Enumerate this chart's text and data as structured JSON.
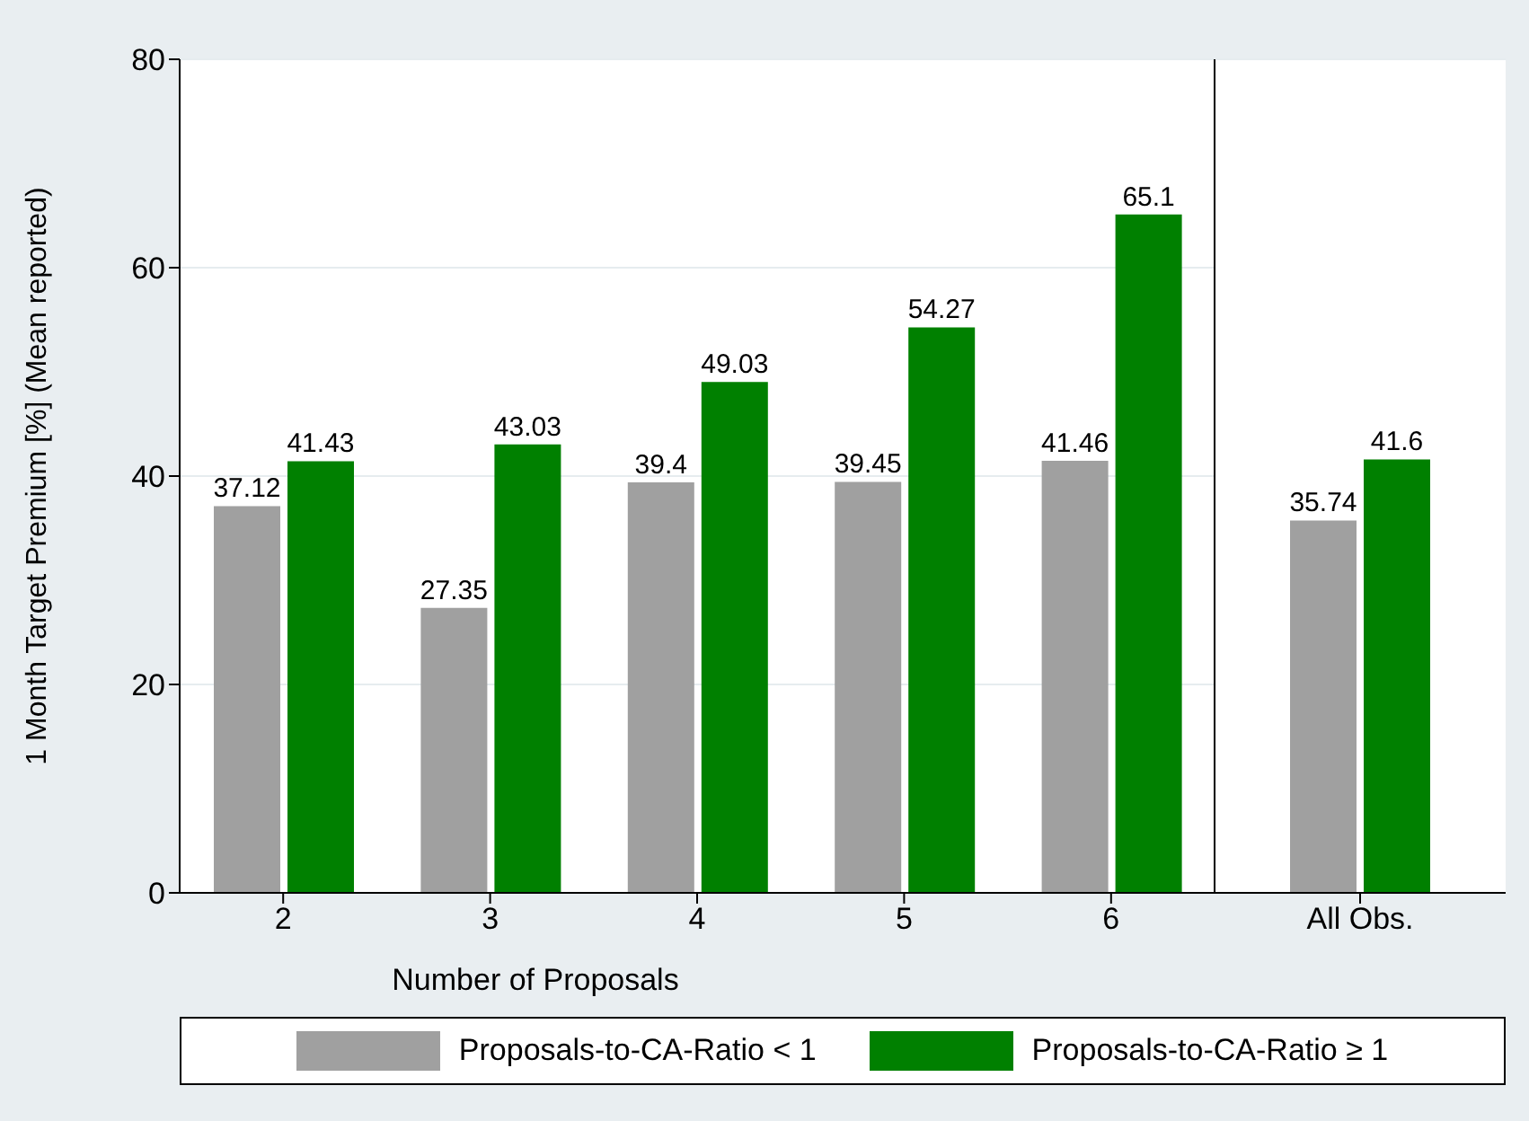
{
  "chart_data": [
    {
      "type": "bar",
      "xlabel": "Number of Proposals",
      "ylabel": "1 Month Target Premium [%] (Mean reported)",
      "categories": [
        "2",
        "3",
        "4",
        "5",
        "6"
      ],
      "series": [
        {
          "name": "Proposals-to-CA-Ratio < 1",
          "color": "#a0a0a0",
          "values": [
            37.12,
            27.35,
            39.4,
            39.45,
            41.46
          ]
        },
        {
          "name": "Proposals-to-CA-Ratio ≥ 1",
          "color": "#008000",
          "values": [
            41.43,
            43.03,
            49.03,
            54.27,
            65.1
          ]
        }
      ],
      "ylim": [
        0,
        80
      ],
      "yticks": [
        0,
        20,
        40,
        60,
        80
      ],
      "grid": "y",
      "legend": "bottom",
      "data_labels": true
    },
    {
      "type": "bar",
      "categories": [
        "All Obs."
      ],
      "series": [
        {
          "color": "#a0a0a0",
          "values": [
            35.74
          ]
        },
        {
          "color": "#008000",
          "values": [
            41.6
          ]
        }
      ],
      "ylim": [
        0,
        80
      ],
      "yticks": [
        0,
        20,
        40,
        60,
        80
      ],
      "grid": "y",
      "tick_labels": "x",
      "data_labels": true
    }
  ]
}
